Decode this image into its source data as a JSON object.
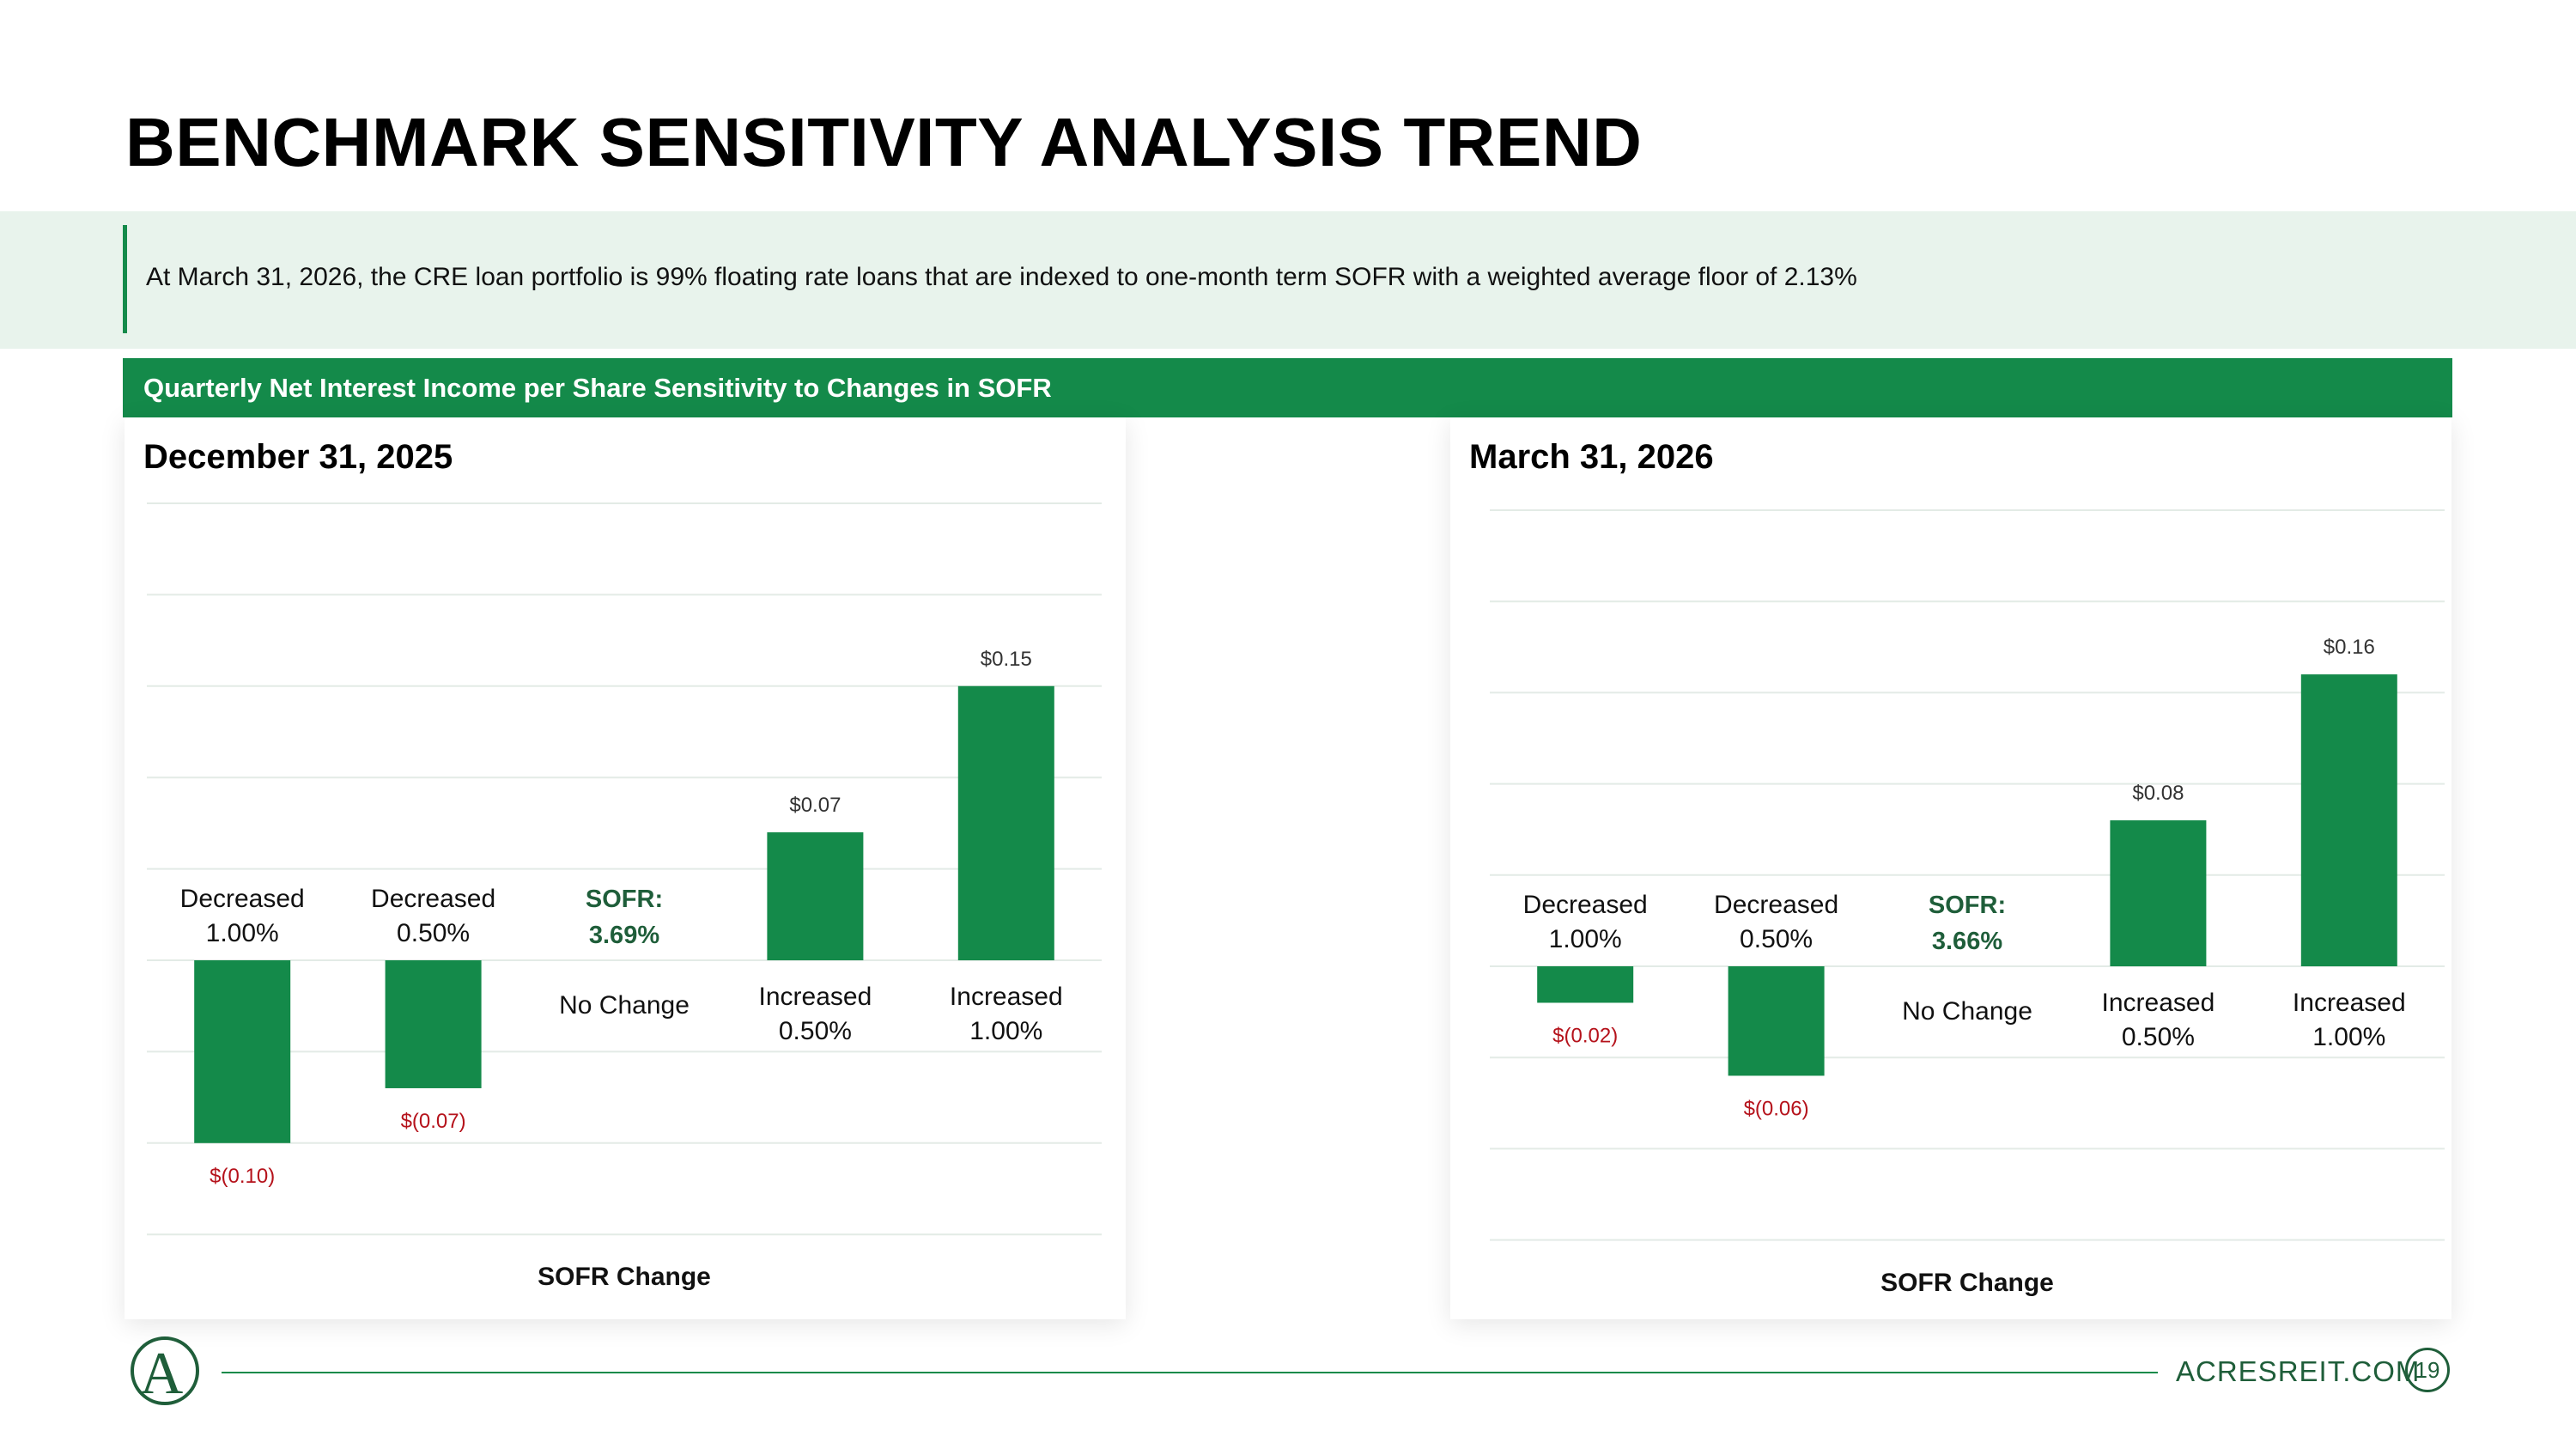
{
  "header": {
    "title": "BENCHMARK SENSITIVITY ANALYSIS TREND",
    "intro": "At March 31, 2026, the CRE loan portfolio is 99% floating rate loans that are indexed to one-month term SOFR with a weighted average floor of 2.13%"
  },
  "section": {
    "title": "Quarterly Net Interest Income per Share Sensitivity to Changes in SOFR"
  },
  "colors": {
    "accent": "#148a4a",
    "negative_label": "#b5121b",
    "sofr_label": "#1f5e3a",
    "band": "#e8f3ec"
  },
  "chart_data": [
    {
      "type": "bar",
      "title": "December 31, 2025",
      "xlabel": "SOFR Change",
      "categories": [
        [
          "Decreased",
          "1.00%"
        ],
        [
          "Decreased",
          "0.50%"
        ],
        [
          "No Change"
        ],
        [
          "Increased",
          "0.50%"
        ],
        [
          "Increased",
          "1.00%"
        ]
      ],
      "values": [
        -0.1,
        -0.07,
        0,
        0.07,
        0.15
      ],
      "value_labels": [
        "$(0.10)",
        "$(0.07)",
        "",
        "$0.07",
        "$0.15"
      ],
      "sofr_note": [
        "SOFR:",
        "3.69%"
      ],
      "ylim": [
        -0.15,
        0.25
      ],
      "grid": true
    },
    {
      "type": "bar",
      "title": "March 31, 2026",
      "xlabel": "SOFR Change",
      "categories": [
        [
          "Decreased",
          "1.00%"
        ],
        [
          "Decreased",
          "0.50%"
        ],
        [
          "No Change"
        ],
        [
          "Increased",
          "0.50%"
        ],
        [
          "Increased",
          "1.00%"
        ]
      ],
      "values": [
        -0.02,
        -0.06,
        0,
        0.08,
        0.16
      ],
      "value_labels": [
        "$(0.02)",
        "$(0.06)",
        "",
        "$0.08",
        "$0.16"
      ],
      "sofr_note": [
        "SOFR:",
        "3.66%"
      ],
      "ylim": [
        -0.15,
        0.25
      ],
      "grid": true
    }
  ],
  "footer": {
    "site": "ACRESREIT.COM",
    "page": "19",
    "logo_letter": "A"
  }
}
